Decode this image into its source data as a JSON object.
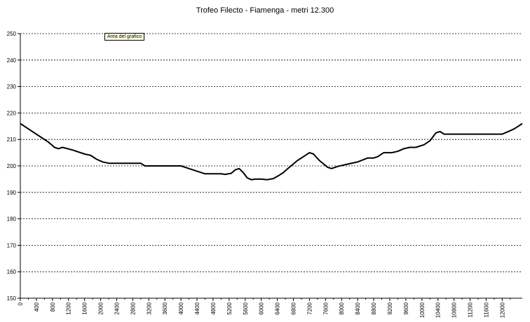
{
  "tooltip_text": "Area del grafico",
  "colors": {
    "line": "#000000",
    "grid": "#000000",
    "background": "#ffffff",
    "tooltip_bg": "#ffffe1"
  },
  "chart_data": {
    "type": "line",
    "title": "Trofeo Filecto - Fiamenga - metri 12.300",
    "xlabel": "",
    "ylabel": "",
    "xlim": [
      0,
      12300
    ],
    "ylim": [
      150,
      250
    ],
    "yticks": [
      150,
      160,
      170,
      180,
      190,
      200,
      210,
      220,
      230,
      240,
      250
    ],
    "xticks": [
      0,
      400,
      800,
      1200,
      1600,
      2000,
      2400,
      2800,
      3200,
      3600,
      4000,
      4400,
      4800,
      5200,
      5600,
      6000,
      6400,
      6800,
      7200,
      7600,
      8000,
      8400,
      8800,
      9200,
      9600,
      10000,
      10400,
      10800,
      11200,
      11600,
      12000
    ],
    "grid": "horizontal-dashed",
    "legend": "none",
    "series": [
      {
        "values": [
          [
            0,
            216
          ],
          [
            300,
            213
          ],
          [
            700,
            209
          ],
          [
            850,
            207
          ],
          [
            950,
            206.5
          ],
          [
            1050,
            207
          ],
          [
            1300,
            206
          ],
          [
            1600,
            204.5
          ],
          [
            1750,
            204
          ],
          [
            1900,
            202.5
          ],
          [
            2050,
            201.5
          ],
          [
            2200,
            201
          ],
          [
            2500,
            201
          ],
          [
            2800,
            201
          ],
          [
            3000,
            201
          ],
          [
            3100,
            200
          ],
          [
            3500,
            200
          ],
          [
            3800,
            200
          ],
          [
            4000,
            200
          ],
          [
            4200,
            199
          ],
          [
            4400,
            198
          ],
          [
            4600,
            197
          ],
          [
            4800,
            197
          ],
          [
            5000,
            197
          ],
          [
            5100,
            196.8
          ],
          [
            5250,
            197.2
          ],
          [
            5350,
            198.5
          ],
          [
            5450,
            199
          ],
          [
            5550,
            197.5
          ],
          [
            5650,
            195.5
          ],
          [
            5750,
            194.8
          ],
          [
            5850,
            195
          ],
          [
            6000,
            195
          ],
          [
            6150,
            194.8
          ],
          [
            6300,
            195.2
          ],
          [
            6450,
            196.5
          ],
          [
            6550,
            197.5
          ],
          [
            6700,
            199.5
          ],
          [
            6900,
            202
          ],
          [
            7050,
            203.5
          ],
          [
            7200,
            205
          ],
          [
            7300,
            204.5
          ],
          [
            7450,
            202
          ],
          [
            7650,
            199.5
          ],
          [
            7750,
            199
          ],
          [
            7900,
            199.8
          ],
          [
            8100,
            200.5
          ],
          [
            8400,
            201.5
          ],
          [
            8650,
            203
          ],
          [
            8800,
            203
          ],
          [
            8900,
            203.5
          ],
          [
            9050,
            205
          ],
          [
            9150,
            205
          ],
          [
            9250,
            205
          ],
          [
            9400,
            205.5
          ],
          [
            9550,
            206.5
          ],
          [
            9700,
            207
          ],
          [
            9850,
            207
          ],
          [
            10050,
            208
          ],
          [
            10200,
            209.5
          ],
          [
            10350,
            212.5
          ],
          [
            10450,
            213
          ],
          [
            10550,
            212
          ],
          [
            10700,
            212
          ],
          [
            11000,
            212
          ],
          [
            11400,
            212
          ],
          [
            11800,
            212
          ],
          [
            12000,
            212
          ],
          [
            12150,
            213
          ],
          [
            12300,
            214
          ],
          [
            12400,
            215
          ],
          [
            12500,
            216
          ]
        ]
      }
    ]
  }
}
